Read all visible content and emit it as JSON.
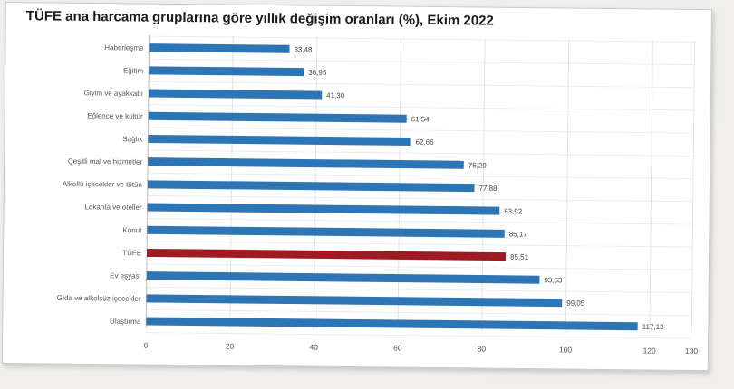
{
  "chart_data": {
    "type": "bar",
    "orientation": "horizontal",
    "title": "TÜFE ana harcama gruplarına göre yıllık değişim oranları (%), Ekim 2022",
    "categories": [
      "Haberleşme",
      "Eğitim",
      "Giyim ve ayakkabı",
      "Eğlence ve kültür",
      "Sağlık",
      "Çeşitli mal ve hizmetler",
      "Alkollü içecekler ve tütün",
      "Lokanta ve oteller",
      "Konut",
      "TÜFE",
      "Ev eşyası",
      "Gıda ve alkolsüz içecekler",
      "Ulaştırma"
    ],
    "values": [
      33.48,
      36.95,
      41.3,
      61.54,
      62.66,
      75.29,
      77.88,
      83.92,
      85.17,
      85.51,
      93.63,
      99.05,
      117.13
    ],
    "value_labels": [
      "33,48",
      "36,95",
      "41,30",
      "61,54",
      "62,66",
      "75,29",
      "77,88",
      "83,92",
      "85,17",
      "85,51",
      "93,63",
      "99,05",
      "117,13"
    ],
    "highlight_category": "TÜFE",
    "colors": {
      "bar": "#2e75b6",
      "highlight": "#9e1b22"
    },
    "xlim": [
      0,
      130
    ],
    "xticks": [
      0,
      20,
      40,
      60,
      80,
      100,
      120,
      130
    ],
    "grid": true,
    "legend": "none"
  }
}
